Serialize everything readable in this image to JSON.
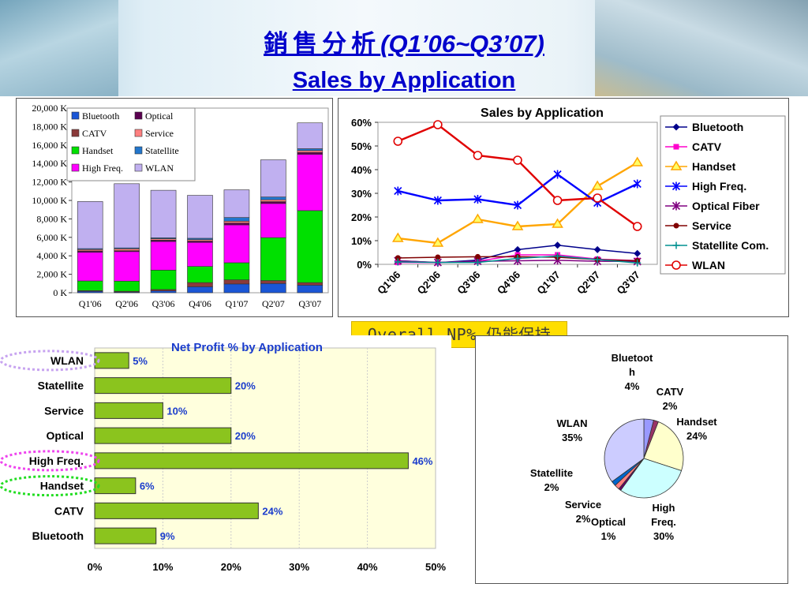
{
  "header": {
    "title_cjk": "銷售分析",
    "title_suffix": "(Q1’06~Q3’07)",
    "subtitle": "Sales by Application"
  },
  "banner": {
    "text": "Overall NP% 仍能保持"
  },
  "colors": {
    "title": "#0000cc",
    "bluetooth": "#1a56d6",
    "catv": "#8a3a3a",
    "handset": "#00e000",
    "high_freq": "#ff00ff",
    "optical": "#5a0050",
    "service": "#ff8080",
    "statellite": "#2276cc",
    "wlan": "#c0b0f0",
    "np_bar": "#8bc41e",
    "banner": "#ffde00"
  },
  "chart_data": [
    {
      "type": "bar",
      "stacked": true,
      "categories": [
        "Q1'06",
        "Q2'06",
        "Q3'06",
        "Q4'06",
        "Q1'07",
        "Q2'07",
        "Q3'07"
      ],
      "yticks": [
        "0 K",
        "2,000 K",
        "4,000 K",
        "6,000 K",
        "8,000 K",
        "10,000 K",
        "12,000 K",
        "14,000 K",
        "16,000 K",
        "18,000 K",
        "20,000 K"
      ],
      "ylim": [
        0,
        20000
      ],
      "grid": false,
      "legend_position": "top-left",
      "series": [
        {
          "name": "Bluetooth",
          "color": "#1a56d6",
          "values": [
            150,
            80,
            200,
            650,
            950,
            1000,
            820
          ]
        },
        {
          "name": "CATV",
          "color": "#8a3a3a",
          "values": [
            80,
            80,
            150,
            450,
            450,
            320,
            280
          ]
        },
        {
          "name": "Handset",
          "color": "#00e000",
          "values": [
            1050,
            1100,
            2100,
            1750,
            1850,
            4650,
            7800
          ]
        },
        {
          "name": "High Freq.",
          "color": "#ff00ff",
          "values": [
            3100,
            3200,
            3100,
            2600,
            4100,
            3700,
            6100
          ]
        },
        {
          "name": "Optical",
          "color": "#5a0050",
          "values": [
            150,
            100,
            150,
            150,
            200,
            200,
            200
          ]
        },
        {
          "name": "Service",
          "color": "#ff8080",
          "values": [
            150,
            200,
            150,
            150,
            200,
            200,
            200
          ]
        },
        {
          "name": "Statellite",
          "color": "#2276cc",
          "values": [
            100,
            100,
            100,
            150,
            400,
            300,
            200
          ]
        },
        {
          "name": "WLAN",
          "color": "#c0b0f0",
          "values": [
            5100,
            6950,
            5150,
            4650,
            3000,
            4030,
            2800
          ]
        }
      ]
    },
    {
      "type": "line",
      "title": "Sales by Application",
      "categories": [
        "Q1'06",
        "Q2'06",
        "Q3'06",
        "Q4'06",
        "Q1'07",
        "Q2'07",
        "Q3'07"
      ],
      "yticks": [
        "0%",
        "10%",
        "20%",
        "30%",
        "40%",
        "50%",
        "60%"
      ],
      "ylim": [
        0,
        60
      ],
      "grid": false,
      "legend_position": "right",
      "series": [
        {
          "name": "Bluetooth",
          "color": "#00008b",
          "marker": "diamond",
          "values": [
            1.5,
            0.7,
            1.8,
            6.2,
            8.1,
            6.2,
            4.6
          ]
        },
        {
          "name": "CATV",
          "color": "#ff00cc",
          "marker": "square",
          "values": [
            0.8,
            0.7,
            1.3,
            4.0,
            4.0,
            2.2,
            1.6
          ]
        },
        {
          "name": "Handset",
          "color": "#ffa500",
          "marker": "triangle",
          "values": [
            11,
            9,
            19,
            16,
            17,
            33,
            43
          ]
        },
        {
          "name": "High Freq.",
          "color": "#0000ff",
          "marker": "star",
          "values": [
            31,
            27,
            27.5,
            25,
            38,
            26,
            34
          ]
        },
        {
          "name": "Optical Fiber",
          "color": "#800080",
          "marker": "asterisk",
          "values": [
            1.5,
            0.8,
            1.3,
            1.5,
            1.7,
            1.3,
            1.2
          ]
        },
        {
          "name": "Service",
          "color": "#800000",
          "marker": "dot",
          "values": [
            2.7,
            3,
            3.2,
            3.2,
            3,
            2,
            1.5
          ]
        },
        {
          "name": "Statellite Com.",
          "color": "#009090",
          "marker": "plus",
          "values": [
            1,
            0.8,
            0.8,
            2.5,
            3.5,
            2,
            0.6
          ]
        },
        {
          "name": "WLAN",
          "color": "#e00000",
          "marker": "circle",
          "values": [
            52,
            59,
            46,
            44,
            27,
            28,
            16
          ]
        }
      ]
    },
    {
      "type": "bar",
      "orientation": "horizontal",
      "title": "Net Profit % by Application",
      "categories": [
        "WLAN",
        "Statellite",
        "Service",
        "Optical",
        "High Freq.",
        "Handset",
        "CATV",
        "Bluetooth"
      ],
      "values": [
        5,
        20,
        10,
        20,
        46,
        6,
        24,
        9
      ],
      "value_labels": [
        "5%",
        "20%",
        "10%",
        "20%",
        "46%",
        "6%",
        "24%",
        "9%"
      ],
      "xticks": [
        "0%",
        "10%",
        "20%",
        "30%",
        "40%",
        "50%"
      ],
      "xlim": [
        0,
        50
      ],
      "highlighted": [
        "WLAN",
        "High Freq.",
        "Handset"
      ],
      "highlight_colors": {
        "WLAN": "#c7a3f0",
        "High Freq.": "#ee44ee",
        "Handset": "#22dd22"
      }
    },
    {
      "type": "pie",
      "slices": [
        {
          "name": "Bluetooth",
          "label_lines": [
            "Bluetoot",
            "h",
            "4%"
          ],
          "value": 4,
          "color": "#9999ff"
        },
        {
          "name": "CATV",
          "label_lines": [
            "CATV",
            "2%"
          ],
          "value": 2,
          "color": "#993366"
        },
        {
          "name": "Handset",
          "label_lines": [
            "Handset",
            "24%"
          ],
          "value": 24,
          "color": "#ffffcc"
        },
        {
          "name": "High Freq.",
          "label_lines": [
            "High",
            "Freq.",
            "30%"
          ],
          "value": 30,
          "color": "#ccffff"
        },
        {
          "name": "Optical",
          "label_lines": [
            "Optical",
            "1%"
          ],
          "value": 1,
          "color": "#660066"
        },
        {
          "name": "Service",
          "label_lines": [
            "Service",
            "2%"
          ],
          "value": 2,
          "color": "#ff8080"
        },
        {
          "name": "Statellite",
          "label_lines": [
            "Statellite",
            "2%"
          ],
          "value": 2,
          "color": "#0066cc"
        },
        {
          "name": "WLAN",
          "label_lines": [
            "WLAN",
            "35%"
          ],
          "value": 35,
          "color": "#ccccff"
        }
      ]
    }
  ]
}
